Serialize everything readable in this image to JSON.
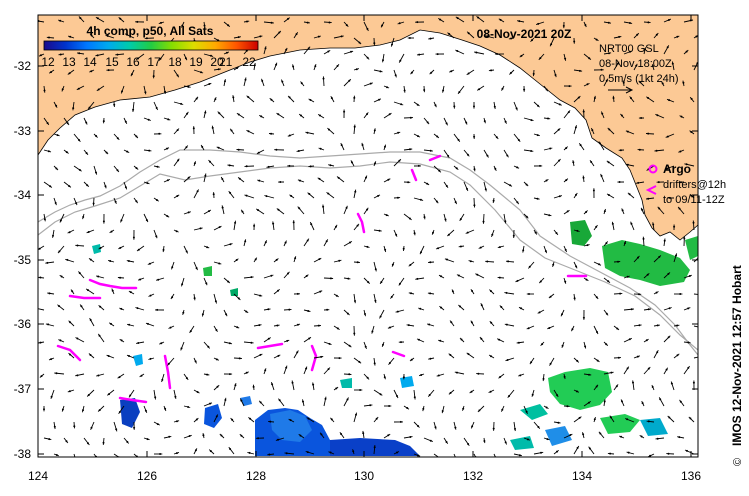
{
  "colorbar": {
    "title": "4h comp, p50, All Sats",
    "ticks": [
      "12",
      "13",
      "14",
      "15",
      "16",
      "17",
      "18",
      "19",
      "20",
      "21",
      "22"
    ],
    "colors": [
      "#1a0a8c",
      "#0033cc",
      "#0066ff",
      "#00aaee",
      "#00cc99",
      "#22cc33",
      "#99dd00",
      "#dddd00",
      "#ffaa00",
      "#ff5500",
      "#cc0000"
    ]
  },
  "header": {
    "date": "08-Nov-2021 20Z"
  },
  "info": {
    "line1": "NRT00 GSL",
    "line2": "08-Nov 18:00Z",
    "line3": "0.5m/s (1kt 24h)"
  },
  "argo": {
    "label": "Argo",
    "drifters_line1": "drifters@12h",
    "drifters_line2": "to 09/11-12Z"
  },
  "credit": "IMOS 12-Nov-2021 12:57 Hobart",
  "copyright": "©",
  "axes": {
    "x_ticks": [
      "124",
      "126",
      "128",
      "130",
      "132",
      "134",
      "136"
    ],
    "y_ticks": [
      "-32",
      "-33",
      "-34",
      "-35",
      "-36",
      "-37",
      "-38"
    ]
  },
  "colors": {
    "land": "#fcc995",
    "vector": "#000000",
    "argo": "#ff00ff",
    "bathymetry": "#aaaaaa"
  }
}
